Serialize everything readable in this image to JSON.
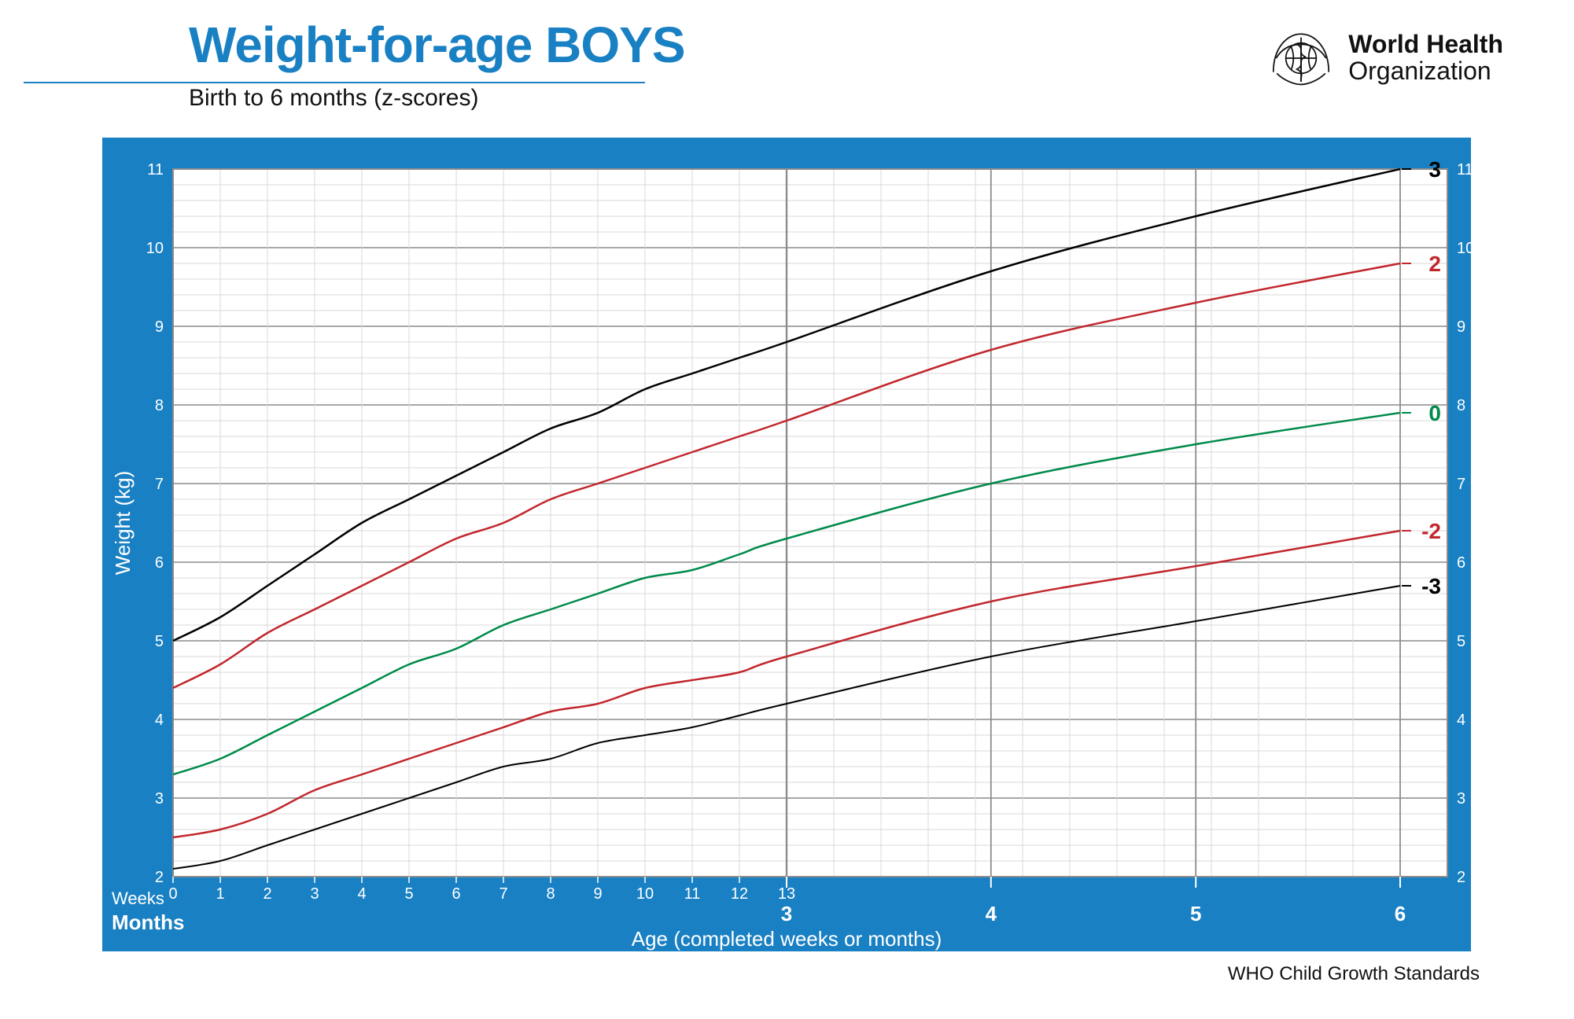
{
  "header": {
    "title": "Weight-for-age BOYS",
    "subtitle": "Birth to 6 months (z-scores)",
    "logo_line1": "World Health",
    "logo_line2": "Organization"
  },
  "footer": {
    "text": "WHO Child Growth Standards"
  },
  "chart": {
    "type": "line",
    "frame_color": "#1980c3",
    "plot_bg": "#ffffff",
    "grid_minor_color": "#d9d9d9",
    "grid_major_color": "#8c8c8c",
    "axis_label_color_inside": "#8c8c8c",
    "axis_label_color_outside": "#ffffff",
    "y_axis": {
      "title": "Weight (kg)",
      "min": 2,
      "max": 11,
      "tick_step": 1,
      "minor_per_major": 5,
      "ticks": [
        2,
        3,
        4,
        5,
        6,
        7,
        8,
        9,
        10,
        11
      ],
      "title_fontsize": 26,
      "tick_fontsize": 20
    },
    "x_axis": {
      "title": "Age (completed weeks or months)",
      "weeks_label": "Weeks",
      "months_label": "Months",
      "min_weeks": 0,
      "max_weeks": 26,
      "week_ticks": [
        0,
        1,
        2,
        3,
        4,
        5,
        6,
        7,
        8,
        9,
        10,
        11,
        12,
        13
      ],
      "month_ticks_weeks": [
        13,
        17.33,
        21.67,
        26
      ],
      "month_tick_labels": [
        "3",
        "4",
        "5",
        "6"
      ],
      "tick_fontsize": 20,
      "title_fontsize": 26
    },
    "zscore_label_fontsize": 28,
    "series": [
      {
        "z": "3",
        "color": "#000000",
        "weight": 2.5,
        "points_weeks": [
          0,
          1,
          2,
          3,
          4,
          5,
          6,
          7,
          8,
          9,
          10,
          11,
          12,
          13,
          17.33,
          21.67,
          26
        ],
        "points_kg": [
          5.0,
          5.3,
          5.7,
          6.1,
          6.5,
          6.8,
          7.1,
          7.4,
          7.7,
          7.9,
          8.2,
          8.4,
          8.6,
          8.8,
          9.7,
          10.4,
          11.0
        ]
      },
      {
        "z": "2",
        "color": "#c1272d",
        "weight": 2.5,
        "points_weeks": [
          0,
          1,
          2,
          3,
          4,
          5,
          6,
          7,
          8,
          9,
          10,
          11,
          12,
          13,
          17.33,
          21.67,
          26
        ],
        "points_kg": [
          4.4,
          4.7,
          5.1,
          5.4,
          5.7,
          6.0,
          6.3,
          6.5,
          6.8,
          7.0,
          7.2,
          7.4,
          7.6,
          7.8,
          8.7,
          9.3,
          9.8
        ]
      },
      {
        "z": "0",
        "color": "#008a4b",
        "weight": 2.5,
        "points_weeks": [
          0,
          1,
          2,
          3,
          4,
          5,
          6,
          7,
          8,
          9,
          10,
          11,
          12,
          13,
          17.33,
          21.67,
          26
        ],
        "points_kg": [
          3.3,
          3.5,
          3.8,
          4.1,
          4.4,
          4.7,
          4.9,
          5.2,
          5.4,
          5.6,
          5.8,
          5.9,
          6.1,
          6.3,
          7.0,
          7.5,
          7.9
        ]
      },
      {
        "z": "-2",
        "color": "#c1272d",
        "weight": 2.5,
        "points_weeks": [
          0,
          1,
          2,
          3,
          4,
          5,
          6,
          7,
          8,
          9,
          10,
          11,
          12,
          13,
          17.33,
          21.67,
          26
        ],
        "points_kg": [
          2.5,
          2.6,
          2.8,
          3.1,
          3.3,
          3.5,
          3.7,
          3.9,
          4.1,
          4.2,
          4.4,
          4.5,
          4.6,
          4.8,
          5.5,
          5.95,
          6.4
        ]
      },
      {
        "z": "-3",
        "color": "#000000",
        "weight": 2.0,
        "points_weeks": [
          0,
          1,
          2,
          3,
          4,
          5,
          6,
          7,
          8,
          9,
          10,
          11,
          12,
          13,
          17.33,
          21.67,
          26
        ],
        "points_kg": [
          2.1,
          2.2,
          2.4,
          2.6,
          2.8,
          3.0,
          3.2,
          3.4,
          3.5,
          3.7,
          3.8,
          3.9,
          4.05,
          4.2,
          4.8,
          5.25,
          5.7
        ]
      }
    ],
    "label_strip_bg": "#ffffff"
  }
}
